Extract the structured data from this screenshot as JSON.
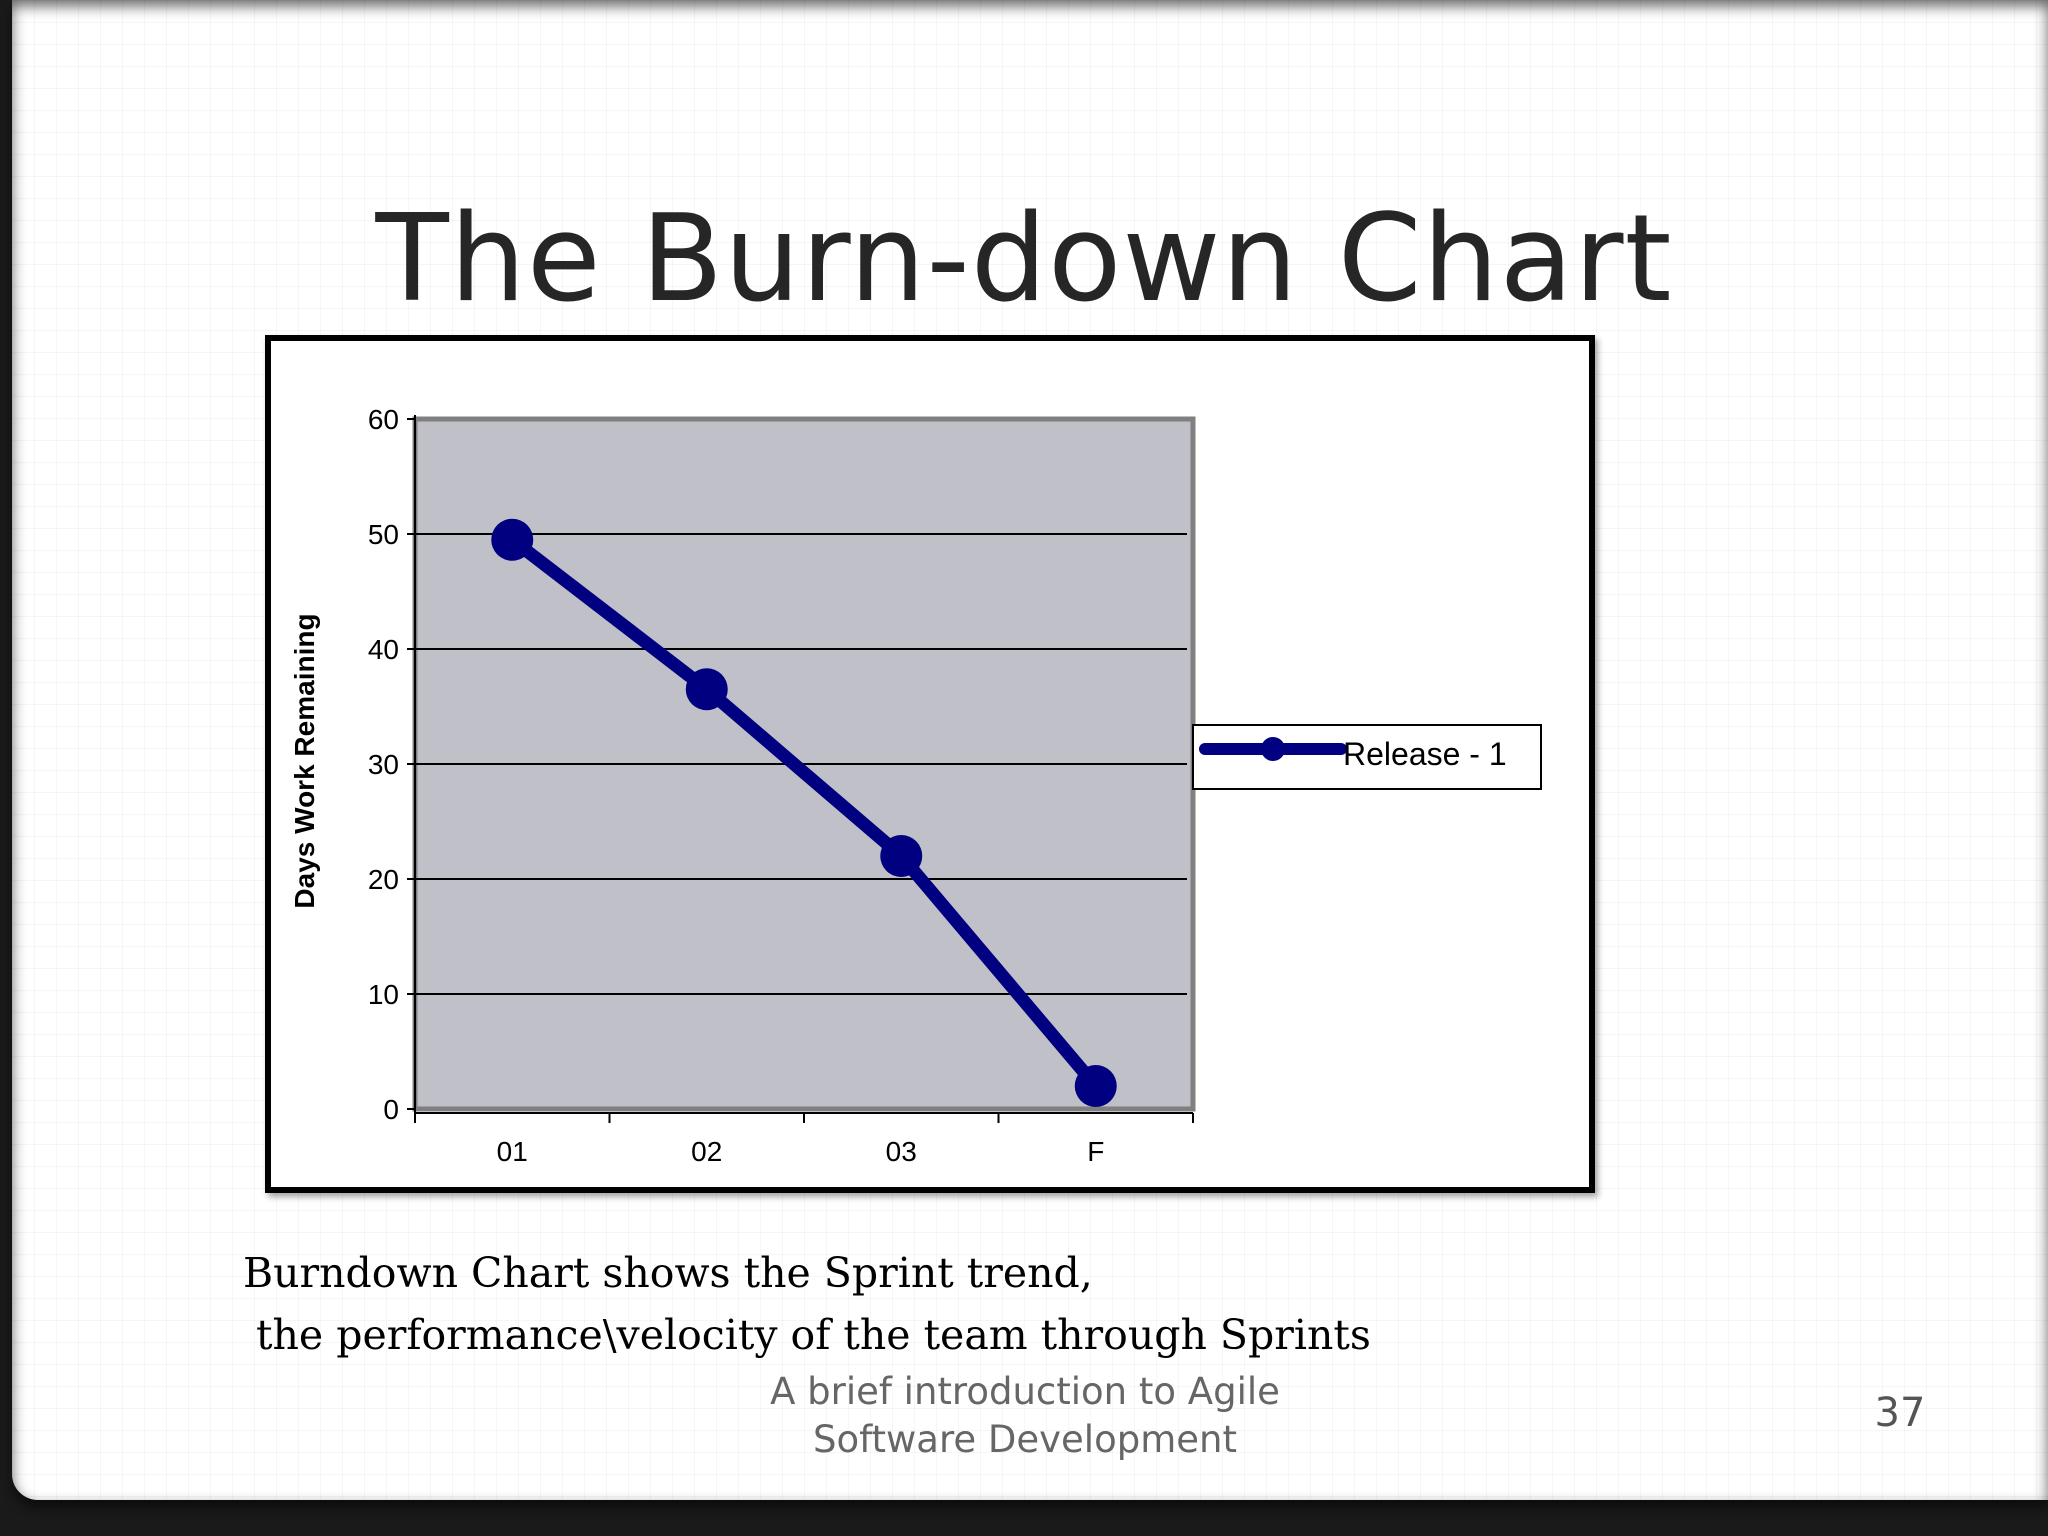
{
  "slide": {
    "title": "The Burn-down Chart",
    "caption_line1": "Burndown Chart shows the Sprint trend,",
    "caption_line2": " the performance\\velocity of the team through Sprints",
    "footer_line1": "A brief introduction to Agile",
    "footer_line2": "Software Development",
    "page_number": "37"
  },
  "chart_data": {
    "type": "line",
    "title": "",
    "xlabel": "",
    "ylabel": "Days Work Remaining",
    "categories": [
      "01",
      "02",
      "03",
      "F"
    ],
    "series": [
      {
        "name": "Release - 1",
        "values": [
          49.5,
          36.5,
          22,
          2
        ],
        "color": "#000080"
      }
    ],
    "ylim": [
      0,
      60
    ],
    "yticks": [
      0,
      10,
      20,
      30,
      40,
      50,
      60
    ],
    "grid": true,
    "legend_position": "right",
    "plot_background": "#c0c0c8"
  }
}
